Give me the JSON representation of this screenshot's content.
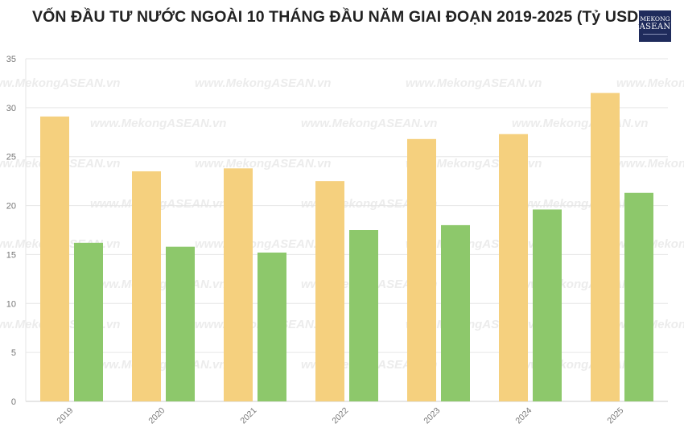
{
  "title": "VỐN ĐẦU TƯ NƯỚC NGOÀI 10 THÁNG ĐẦU NĂM GIAI ĐOẠN 2019-2025 (Tỷ USD)",
  "logo": {
    "line1": "MEKONG",
    "line2": "ASEAN"
  },
  "watermark": "www.MekongASEAN.vn",
  "colors": {
    "series1": "#f5d07e",
    "series2": "#8dc86b",
    "grid": "#e6e6e6",
    "axis": "#cccccc"
  },
  "chart_data": {
    "type": "bar",
    "title": "VỐN ĐẦU TƯ NƯỚC NGOÀI 10 THÁNG ĐẦU NĂM GIAI ĐOẠN 2019-2025 (Tỷ USD)",
    "categories": [
      "2019",
      "2020",
      "2021",
      "2022",
      "2023",
      "2024",
      "2025"
    ],
    "series": [
      {
        "values": [
          29.1,
          23.5,
          23.8,
          22.5,
          26.8,
          27.3,
          31.5
        ]
      },
      {
        "values": [
          16.2,
          15.8,
          15.2,
          17.5,
          18.0,
          19.6,
          21.3
        ]
      }
    ],
    "yticks": [
      0,
      5,
      10,
      15,
      20,
      25,
      30,
      35
    ],
    "ylim": [
      0,
      35
    ],
    "grid": true,
    "legend": "none"
  }
}
